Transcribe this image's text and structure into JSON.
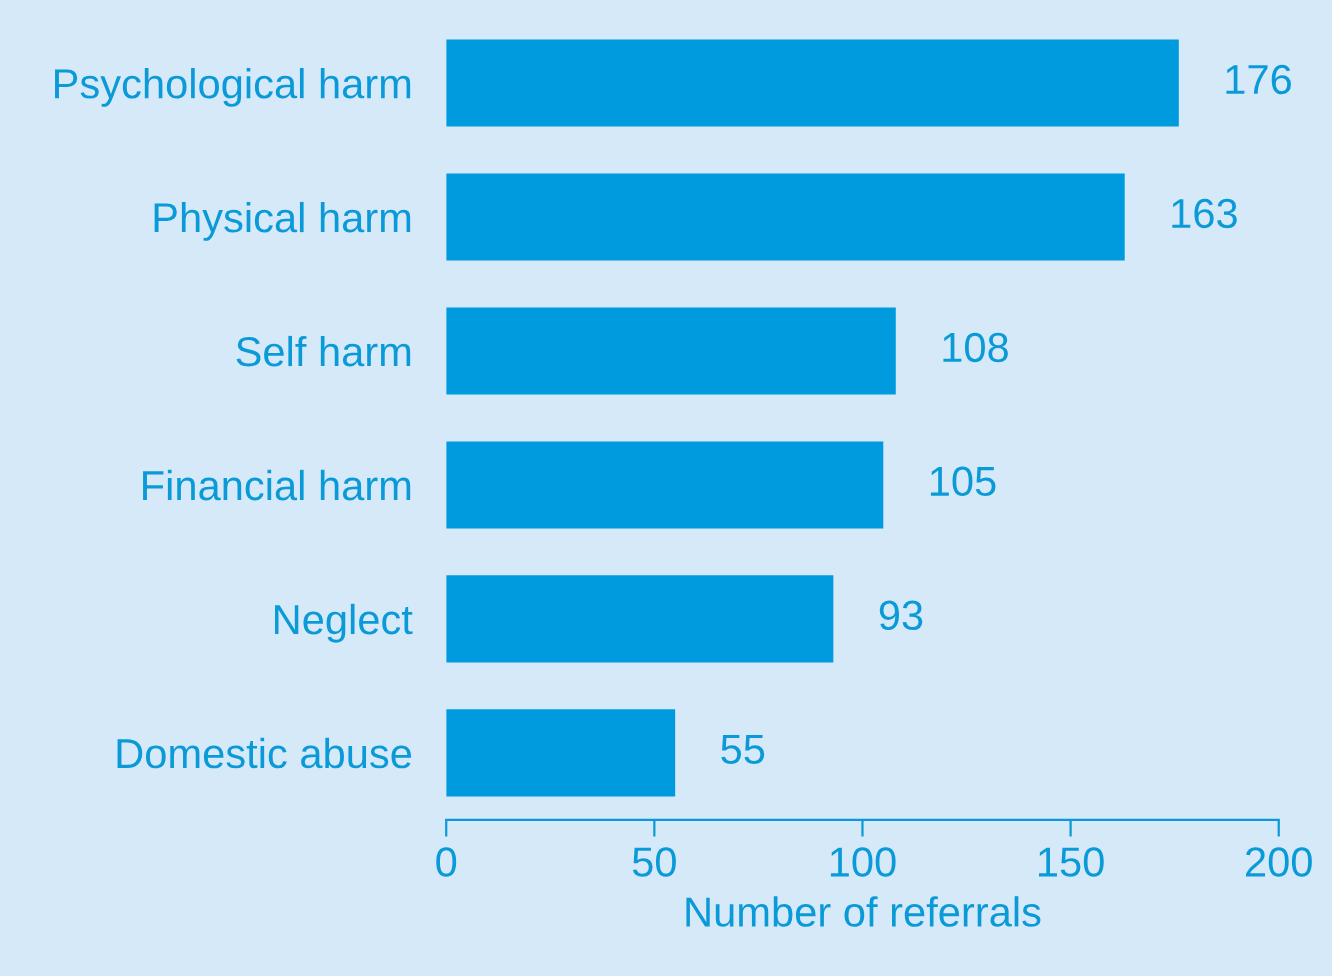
{
  "chart_data": {
    "type": "bar",
    "orientation": "horizontal",
    "xlabel": "Number of referrals",
    "categories": [
      "Psychological harm",
      "Physical harm",
      "Self harm",
      "Financial harm",
      "Neglect",
      "Domestic abuse"
    ],
    "values": [
      176,
      163,
      108,
      105,
      93,
      55
    ],
    "color": "#009ade",
    "xlim": [
      0,
      200
    ],
    "xticks": [
      0,
      50,
      100,
      150,
      200
    ],
    "data_labels": true,
    "grid": false
  }
}
